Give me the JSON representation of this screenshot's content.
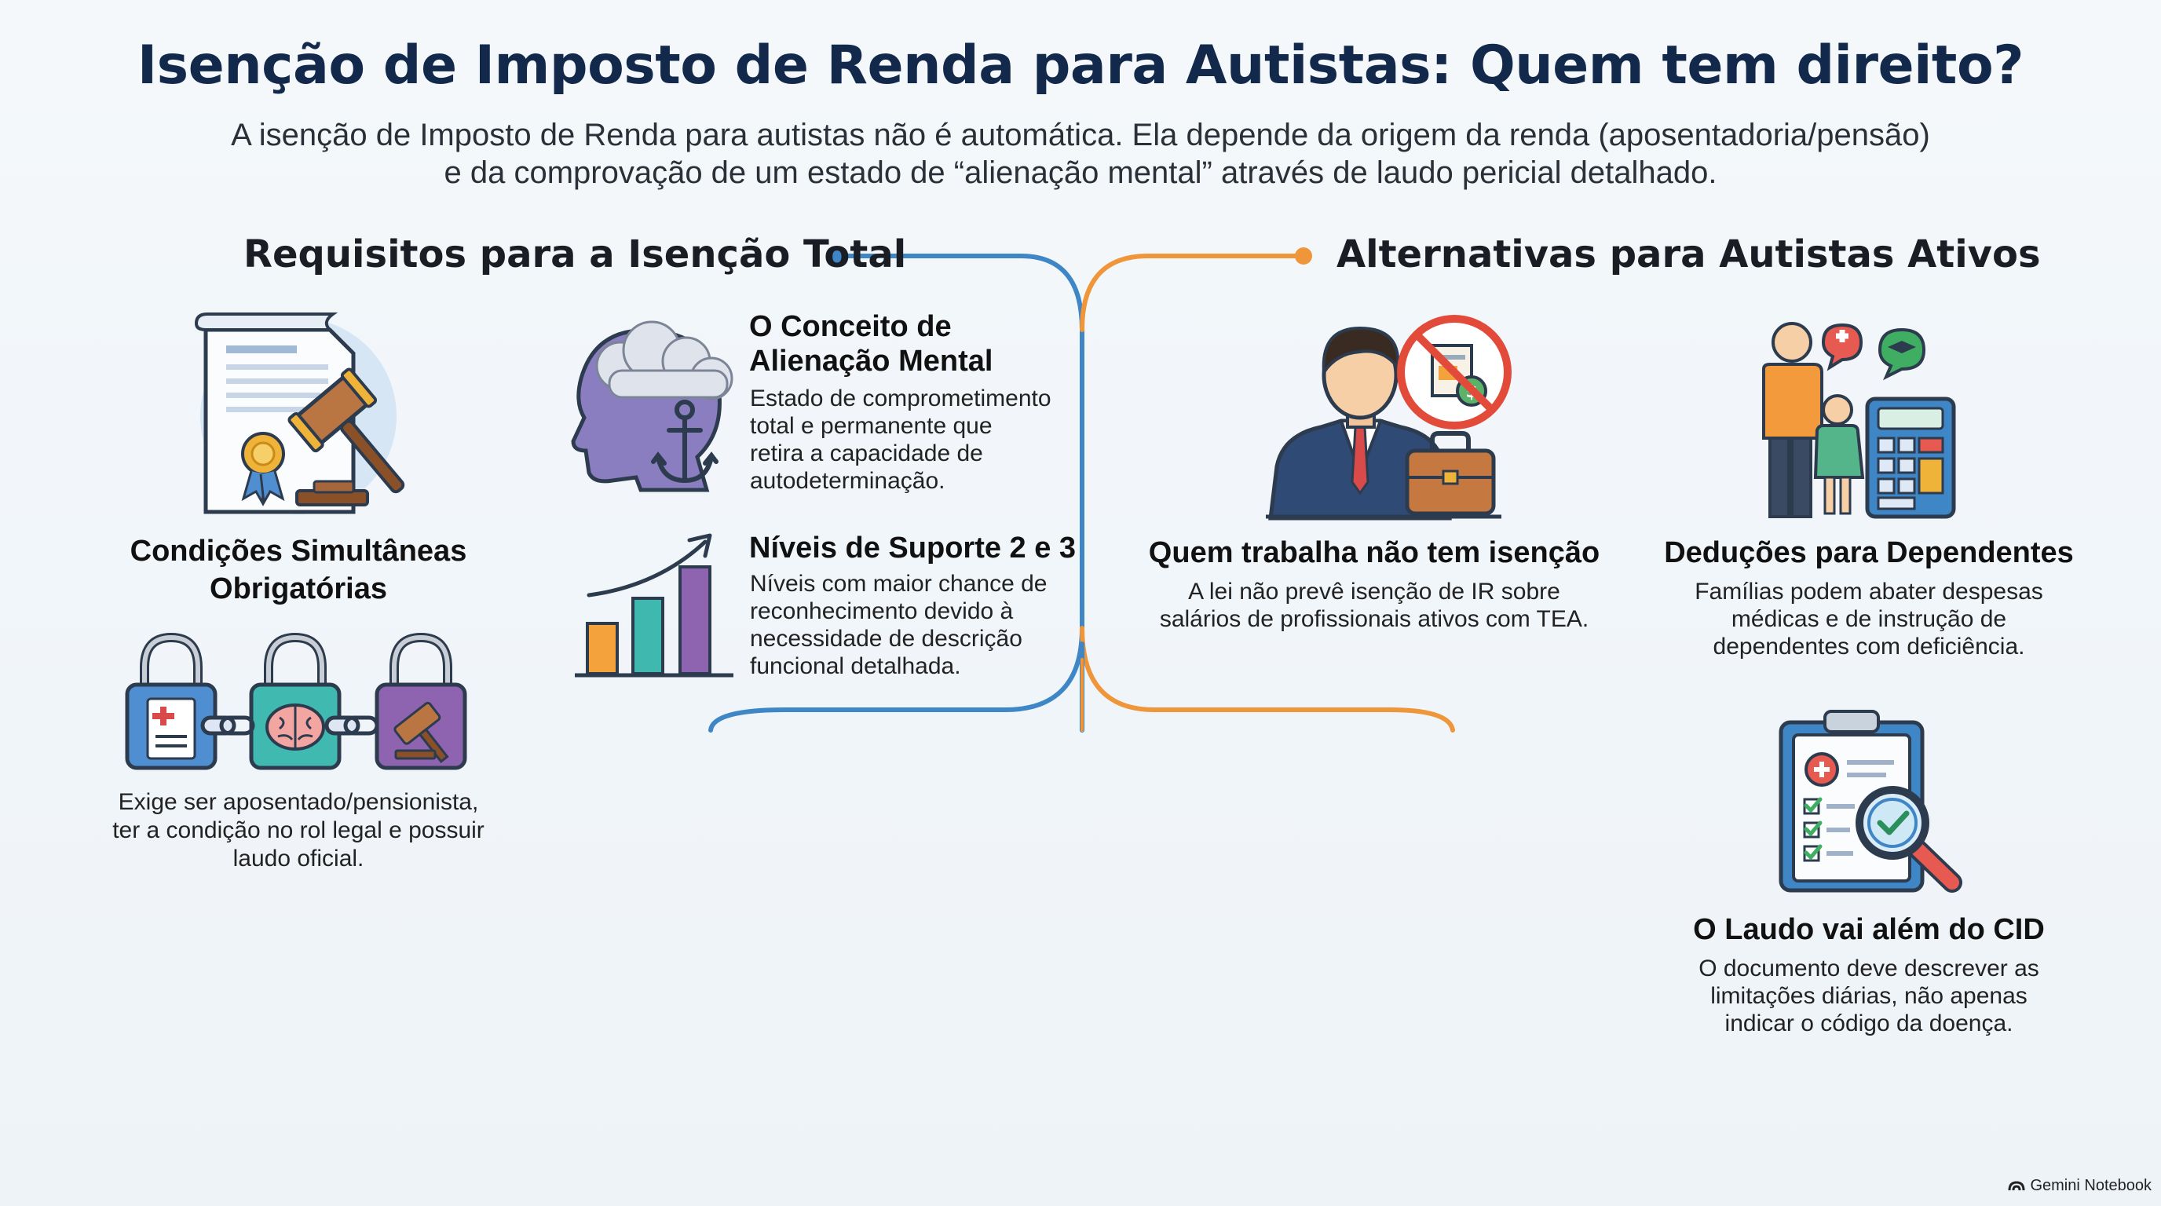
{
  "title": "Isenção de Imposto de Renda para Autistas: Quem tem direito?",
  "subtitle": {
    "line1": "A isenção de Imposto de Renda para autistas não é automática. Ela depende da origem da renda (aposentadoria/pensão)",
    "line2": "e da comprovação de um  estado de “alienação mental” através de laudo pericial detalhado."
  },
  "left_section": {
    "heading": "Requisitos para a Isenção Total",
    "conditions": {
      "heading_line1": "Condições Simultâneas",
      "heading_line2": "Obrigatórias",
      "text_line1": "Exige ser aposentado/pensionista,",
      "text_line2": "ter a condição no rol legal e possuir",
      "text_line3": "laudo oficial."
    },
    "alienation": {
      "heading_line1": "O Conceito de",
      "heading_line2": "Alienação Mental",
      "text_line1": "Estado de comprometimento",
      "text_line2": "total e permanente que",
      "text_line3": "retira a capacidade de",
      "text_line4": "autodeterminação."
    },
    "support": {
      "heading": "Níveis de Suporte 2 e 3",
      "text_line1": "Níveis com maior chance de",
      "text_line2": "reconhecimento devido à",
      "text_line3": "necessidade de descrição",
      "text_line4": "funcional detalhada."
    }
  },
  "right_section": {
    "heading": "Alternativas para Autistas Ativos",
    "workers": {
      "heading": "Quem trabalha não tem isenção",
      "text_line1": "A lei não prevê isenção de IR sobre",
      "text_line2": "salários de profissionais ativos com TEA."
    },
    "dependents": {
      "heading": "Deduções para Dependentes",
      "text_line1": "Famílias podem abater despesas",
      "text_line2": "médicas e de instrução de",
      "text_line3": "dependentes com deficiência."
    },
    "report": {
      "heading": "O Laudo vai além do CID",
      "text_line1": "O documento deve descrever as",
      "text_line2": "limitações diárias, não apenas",
      "text_line3": "indicar o código da doença."
    }
  },
  "brand": "Gemini Notebook",
  "colors": {
    "title": "#13294b",
    "left_line": "#3f86c6",
    "right_line": "#f0963a",
    "background": "#f1f6fa"
  },
  "icons": {
    "document_gavel": "document-gavel-icon",
    "brain_cloud_anchor": "head-cloud-anchor-icon",
    "bar_chart_arrow": "bar-chart-arrow-icon",
    "locks_chain": "locks-chain-icon",
    "worker_no_document": "worker-no-tax-icon",
    "family_calculator": "family-calculator-icon",
    "clipboard_magnifier": "clipboard-magnifier-icon"
  }
}
